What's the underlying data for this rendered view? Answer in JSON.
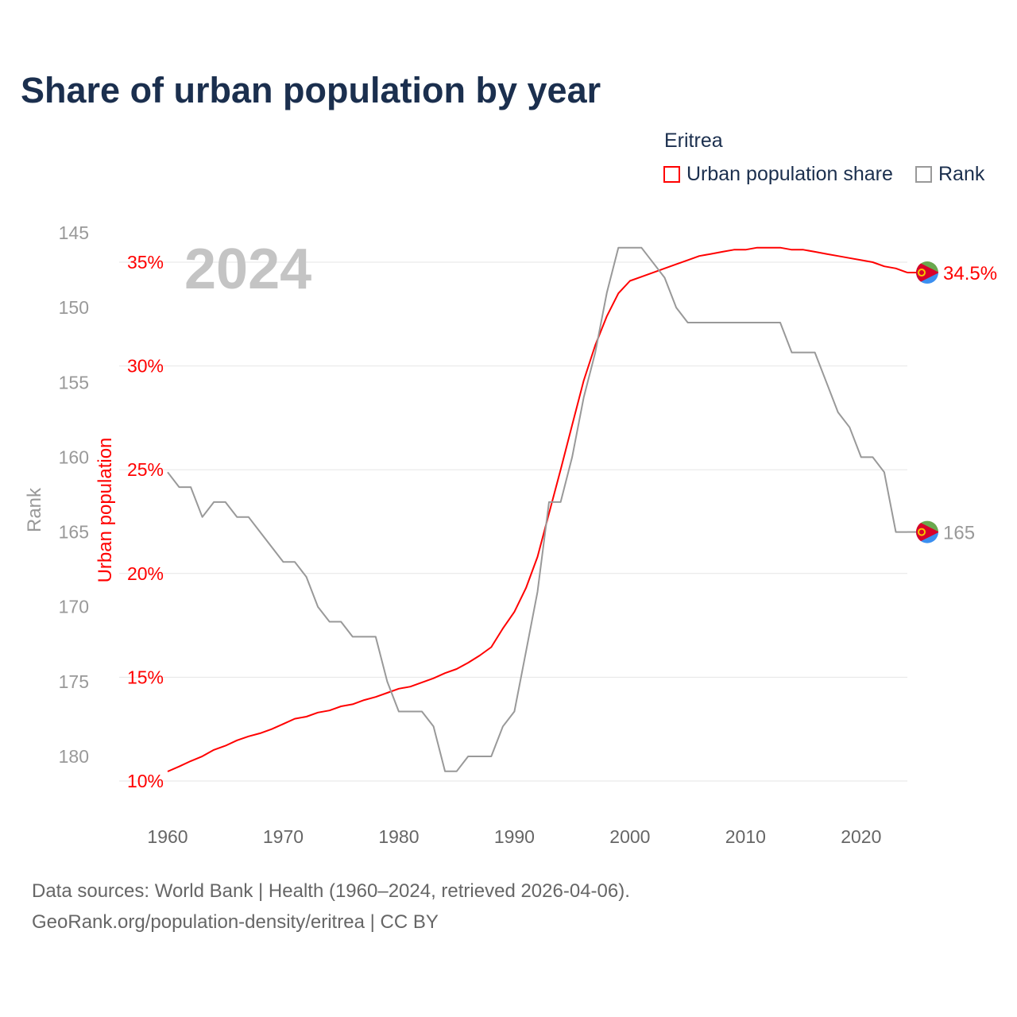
{
  "title": "Share of urban population by year",
  "legend": {
    "country": "Eritrea",
    "items": [
      {
        "label": "Urban population share",
        "color": "#ff0000"
      },
      {
        "label": "Rank",
        "color": "#999999"
      }
    ]
  },
  "source": {
    "line1": "Data sources: World Bank | Health (1960–2024, retrieved 2026-04-06).",
    "line2": "GeoRank.org/population-density/eritrea | CC BY"
  },
  "chart_data": {
    "type": "line",
    "title": "Share of urban population by year",
    "year_label": "2024",
    "xlabel": "",
    "ylabel_left": "Rank",
    "ylabel_right": "Urban population",
    "x_ticks": [
      1960,
      1970,
      1980,
      1990,
      2000,
      2010,
      2020
    ],
    "xlim": [
      1960,
      2024
    ],
    "urban_ticks": [
      "10%",
      "15%",
      "20%",
      "25%",
      "30%",
      "35%"
    ],
    "urban_tick_values": [
      10,
      15,
      20,
      25,
      30,
      35
    ],
    "urban_ylim": [
      10,
      35
    ],
    "rank_ticks": [
      145,
      150,
      155,
      160,
      165,
      170,
      175,
      180
    ],
    "rank_ylim": [
      145,
      180
    ],
    "grid": true,
    "x": [
      1960,
      1961,
      1962,
      1963,
      1964,
      1965,
      1966,
      1967,
      1968,
      1969,
      1970,
      1971,
      1972,
      1973,
      1974,
      1975,
      1976,
      1977,
      1978,
      1979,
      1980,
      1981,
      1982,
      1983,
      1984,
      1985,
      1986,
      1987,
      1988,
      1989,
      1990,
      1991,
      1992,
      1993,
      1994,
      1995,
      1996,
      1997,
      1998,
      1999,
      2000,
      2001,
      2002,
      2003,
      2004,
      2005,
      2006,
      2007,
      2008,
      2009,
      2010,
      2011,
      2012,
      2013,
      2014,
      2015,
      2016,
      2017,
      2018,
      2019,
      2020,
      2021,
      2022,
      2023,
      2024
    ],
    "series": [
      {
        "name": "Urban population share",
        "color": "#ff0000",
        "end_label": "34.5%",
        "values": [
          10.46,
          10.7,
          10.96,
          11.19,
          11.5,
          11.7,
          11.96,
          12.15,
          12.3,
          12.5,
          12.75,
          13.0,
          13.1,
          13.3,
          13.4,
          13.6,
          13.7,
          13.9,
          14.05,
          14.25,
          14.45,
          14.55,
          14.75,
          14.95,
          15.2,
          15.4,
          15.7,
          16.05,
          16.45,
          17.35,
          18.15,
          19.3,
          20.8,
          22.9,
          25.0,
          27.15,
          29.3,
          31.0,
          32.4,
          33.5,
          34.1,
          34.3,
          34.5,
          34.7,
          34.9,
          35.1,
          35.3,
          35.4,
          35.5,
          35.6,
          35.6,
          35.7,
          35.7,
          35.7,
          35.6,
          35.6,
          35.5,
          35.4,
          35.3,
          35.2,
          35.1,
          35.0,
          34.8,
          34.7,
          34.5
        ]
      },
      {
        "name": "Rank",
        "color": "#999999",
        "end_label": "165",
        "values": [
          161,
          162,
          162,
          164,
          163,
          163,
          164,
          164,
          165,
          166,
          167,
          167,
          168,
          170,
          171,
          171,
          172,
          172,
          172,
          175,
          177,
          177,
          177,
          178,
          181,
          181,
          180,
          180,
          180,
          178,
          177,
          173,
          169,
          163,
          163,
          160,
          156,
          153,
          149,
          146,
          146,
          146,
          147,
          148,
          150,
          151,
          151,
          151,
          151,
          151,
          151,
          151,
          151,
          151,
          153,
          153,
          153,
          155,
          157,
          158,
          160,
          160,
          161,
          165,
          165
        ]
      }
    ]
  }
}
